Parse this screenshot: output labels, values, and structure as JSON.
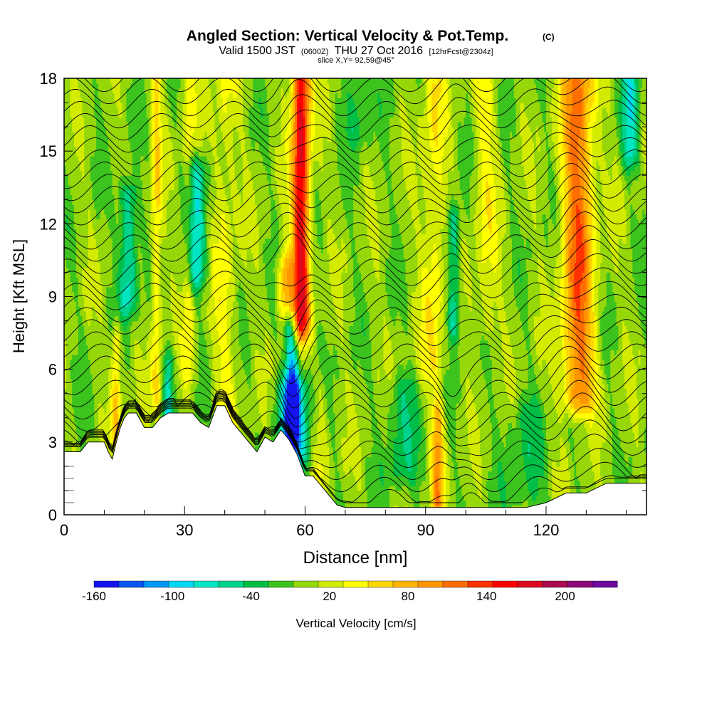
{
  "chart_data": {
    "type": "heatmap",
    "title": "Angled Section: Vertical Velocity & Pot.Temp.",
    "title_tag": "(C)",
    "subtitle_prefix": "Valid 1500 JST",
    "subtitle_zulu": "(0600Z)",
    "subtitle_date": "THU 27 Oct 2016",
    "subtitle_fcst": "[12hrFcst@2304z]",
    "slice_label": "slice X,Y= 92,59@45°",
    "xlabel": "Distance [nm]",
    "ylabel": "Height [Kft MSL]",
    "xlim": [
      0,
      145
    ],
    "ylim": [
      0,
      18
    ],
    "x_ticks": [
      0,
      30,
      60,
      90,
      120
    ],
    "y_ticks": [
      0,
      3,
      6,
      9,
      12,
      15,
      18
    ],
    "colorbar_label": "Vertical Velocity [cm/s]",
    "colorbar_ticks": [
      -160,
      -100,
      -40,
      20,
      80,
      140,
      200
    ],
    "colorbar_levels": [
      -160,
      -140,
      -120,
      -100,
      -80,
      -60,
      -40,
      -20,
      0,
      20,
      40,
      60,
      80,
      100,
      120,
      140,
      160,
      180,
      200,
      220,
      240
    ],
    "colorbar_colors": [
      "#1414ee",
      "#0a55f2",
      "#0096f5",
      "#00d7f5",
      "#00e6c3",
      "#00d28c",
      "#00be46",
      "#3cc31e",
      "#96d70a",
      "#d2eb00",
      "#ffff00",
      "#ffd700",
      "#ffb400",
      "#ff9600",
      "#ff6e00",
      "#ff3200",
      "#ff0000",
      "#dc0a1e",
      "#aa0a50",
      "#8c0a78",
      "#6e0aa0"
    ],
    "terrain_profile": {
      "x": [
        0,
        2,
        4,
        6,
        8,
        10,
        11,
        12,
        13,
        14,
        15,
        16,
        18,
        20,
        22,
        24,
        26,
        28,
        30,
        32,
        34,
        36,
        38,
        40,
        42,
        44,
        46,
        48,
        50,
        52,
        54,
        56,
        58,
        60,
        62,
        64,
        66,
        68,
        70,
        75,
        80,
        90,
        100,
        110,
        115,
        120,
        125,
        130,
        135,
        140,
        145
      ],
      "height": [
        2.6,
        2.6,
        2.6,
        3.0,
        3.0,
        3.0,
        2.6,
        2.3,
        3.0,
        3.6,
        4.0,
        4.2,
        4.2,
        3.6,
        3.6,
        4.0,
        4.2,
        4.2,
        4.2,
        4.2,
        3.8,
        3.6,
        4.5,
        4.5,
        3.8,
        3.4,
        3.0,
        2.6,
        3.2,
        3.0,
        3.5,
        3.1,
        2.5,
        1.6,
        1.6,
        1.2,
        0.8,
        0.4,
        0.3,
        0.3,
        0.3,
        0.3,
        0.3,
        0.3,
        0.3,
        0.5,
        0.9,
        0.9,
        1.3,
        1.3,
        1.3
      ]
    },
    "vertical_velocity_features": [
      {
        "x": 59,
        "zmin": 8,
        "zmax": 18,
        "peak": 180,
        "width": 2.2
      },
      {
        "x": 55,
        "zmin": 3,
        "zmax": 10,
        "peak": 90,
        "width": 1.8
      },
      {
        "x": 128,
        "zmin": 5,
        "zmax": 18,
        "peak": 120,
        "width": 4.0
      },
      {
        "x": 93,
        "zmin": 0.5,
        "zmax": 4,
        "peak": 90,
        "width": 1.5
      },
      {
        "x": 92,
        "zmin": 6,
        "zmax": 18,
        "peak": 45,
        "width": 3.0
      },
      {
        "x": 105,
        "zmin": 8,
        "zmax": 18,
        "peak": 35,
        "width": 3.0
      },
      {
        "x": 13,
        "zmin": 3.5,
        "zmax": 7,
        "peak": 70,
        "width": 1.2
      },
      {
        "x": 31,
        "zmin": 6,
        "zmax": 18,
        "peak": 40,
        "width": 1.5
      },
      {
        "x": 23,
        "zmin": 5,
        "zmax": 18,
        "peak": 55,
        "width": 1.3
      },
      {
        "x": 40,
        "zmin": 3,
        "zmax": 18,
        "peak": 35,
        "width": 3.0
      },
      {
        "x": 56,
        "zmin": 3.5,
        "zmax": 7.5,
        "peak": -150,
        "width": 2.2
      },
      {
        "x": 57,
        "zmin": 2.5,
        "zmax": 5,
        "peak": -100,
        "width": 4.0
      },
      {
        "x": 16,
        "zmin": 9,
        "zmax": 13,
        "peak": -80,
        "width": 2.2
      },
      {
        "x": 33,
        "zmin": 10,
        "zmax": 14,
        "peak": -80,
        "width": 2.5
      },
      {
        "x": 26,
        "zmin": 4,
        "zmax": 6,
        "peak": -70,
        "width": 1.2
      },
      {
        "x": 97,
        "zmin": 8,
        "zmax": 12,
        "peak": -70,
        "width": 1.5
      },
      {
        "x": 141,
        "zmin": 15,
        "zmax": 18,
        "peak": -70,
        "width": 2.0
      },
      {
        "x": 73,
        "zmin": 16,
        "zmax": 18,
        "peak": -40,
        "width": 3.0
      },
      {
        "x": 84,
        "zmin": 2,
        "zmax": 5,
        "peak": -40,
        "width": 4.0
      },
      {
        "x": 115,
        "zmin": 1,
        "zmax": 4,
        "peak": -30,
        "width": 5.0
      },
      {
        "x": 64,
        "zmin": 2,
        "zmax": 5,
        "peak": 30,
        "width": 2.0
      }
    ],
    "isentrope_count": 36,
    "isentrope_color": "#000000"
  }
}
